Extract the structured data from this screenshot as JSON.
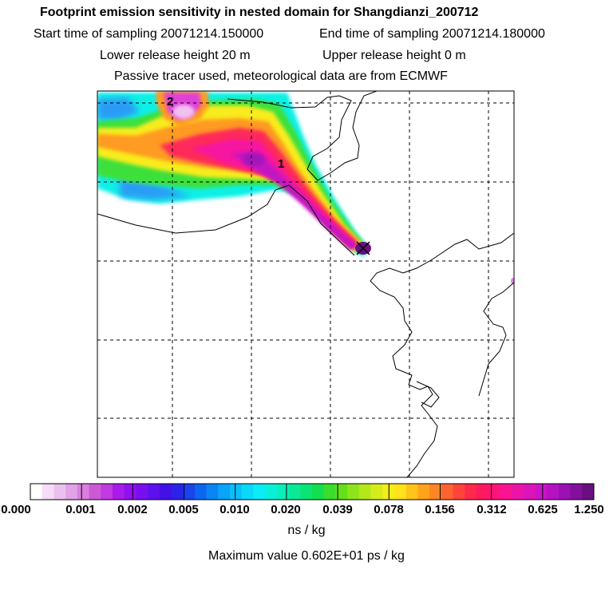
{
  "header": {
    "title": "Footprint emission sensitivity in nested domain for Shangdianzi_200712",
    "start_label": "Start time of sampling 20071214.150000",
    "end_label": "End time of sampling 20071214.180000",
    "lower_label": "Lower release height   20 m",
    "upper_label": "Upper release height    0 m",
    "info": "Passive tracer used, meteorological data are from ECMWF"
  },
  "map": {
    "contour_labels": [
      "2",
      "1"
    ],
    "station_marker": "receptor-cross"
  },
  "colorbar": {
    "tick_labels": [
      "0.000",
      "0.001",
      "0.002",
      "0.005",
      "0.010",
      "0.020",
      "0.039",
      "0.078",
      "0.156",
      "0.312",
      "0.625",
      "1.250"
    ],
    "colors": [
      "#ffffff",
      "#f6dcf6",
      "#ecc0ee",
      "#e2a2e6",
      "#d880dc",
      "#cc5ad6",
      "#c03ade",
      "#aa1ae8",
      "#9110f0",
      "#7810ee",
      "#5e10ee",
      "#4210e8",
      "#2c22e8",
      "#1a44ec",
      "#0c66f0",
      "#0a86f4",
      "#0aa4f8",
      "#0ac0fa",
      "#0ad8fa",
      "#0aecf6",
      "#0af0d8",
      "#0aeeb8",
      "#0aea96",
      "#0ae474",
      "#10e050",
      "#3ade2a",
      "#64e01a",
      "#8ee41a",
      "#b4e81a",
      "#d6ec1a",
      "#f2ee1a",
      "#ffe21a",
      "#ffc41a",
      "#ffa41a",
      "#ff8424",
      "#ff6430",
      "#ff443a",
      "#ff2a4a",
      "#ff1a60",
      "#ff1478",
      "#fa1492",
      "#ec14a8",
      "#dc14ba",
      "#ca14c6",
      "#b412c2",
      "#9c10b4",
      "#82109c",
      "#6a0e80"
    ],
    "unit_label": "ns / kg",
    "max_value_label": "Maximum value  0.602E+01 ps / kg"
  }
}
